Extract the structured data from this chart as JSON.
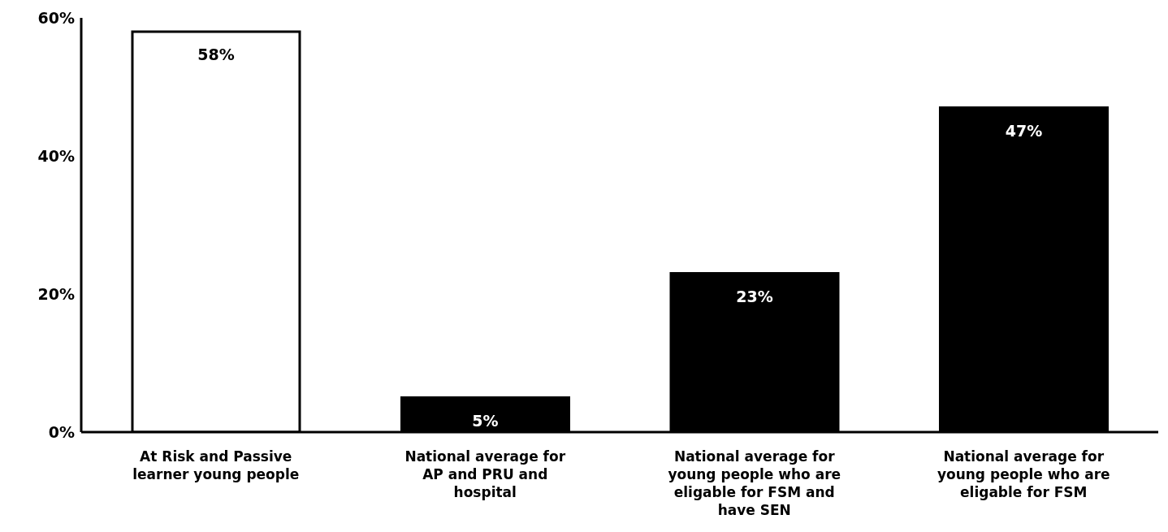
{
  "chart_data": {
    "type": "bar",
    "categories": [
      "At Risk and Passive learner young people",
      "National average for AP and PRU and hospital",
      "National average for young people who are eligable for FSM and have SEN",
      "National average for young people who are eligable for FSM"
    ],
    "values": [
      58,
      5,
      23,
      47
    ],
    "colors": [
      "#ffffff",
      "#000000",
      "#000000",
      "#000000"
    ],
    "value_labels": [
      "58%",
      "5%",
      "23%",
      "47%"
    ],
    "ylim": [
      0,
      60
    ],
    "yticks": [
      {
        "value": 0,
        "label": "0%"
      },
      {
        "value": 20,
        "label": "20%"
      },
      {
        "value": 40,
        "label": "40%"
      },
      {
        "value": 60,
        "label": "60%"
      }
    ],
    "grid": false
  }
}
